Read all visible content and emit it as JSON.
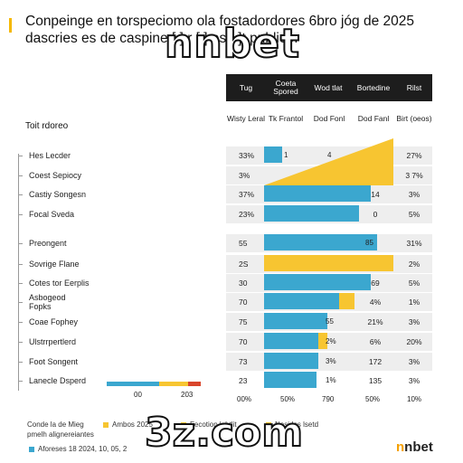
{
  "title": "Conpeinge en torspeciomo ola fostadordores 6bro jóg de 2025 dascries es de caspine [ ] r [ ] es [ ]t publico.",
  "watermark_top": "nnbet",
  "watermark_bottom": "3z.com",
  "brand": {
    "prefix": "n",
    "rest": "nbet"
  },
  "table_label": "Toit rdoreo",
  "header": [
    "Tug",
    "Coeta Spored",
    "Wod tlat",
    "Bortedine",
    "Rilst"
  ],
  "subheader": [
    "Wisty Leral",
    "Tk Frantol",
    "Dod Fonl",
    "Dod Fanl",
    "Birt (oeos)"
  ],
  "rows": [
    {
      "label": "Hes Lecder",
      "pct": "33%",
      "v3": "",
      "v4": "27%",
      "bar_text": "1",
      "bar_text2": "4"
    },
    {
      "label": "Coest Sepiocy",
      "pct": "3%",
      "v3": "",
      "v4": "3 7%",
      "bar_text": "",
      "bar_text2": ""
    },
    {
      "label": "Castiy Songesn",
      "pct": "37%",
      "v3": "14",
      "v4": "3%",
      "bar_text": "",
      "bar_text2": ""
    },
    {
      "label": "Focal Sveda",
      "pct": "23%",
      "v3": "0",
      "v4": "5%",
      "bar_text": "",
      "bar_text2": ""
    },
    {
      "label": "Preongent",
      "pct": "55",
      "v3": "",
      "v4": "31%",
      "bar_text": "85",
      "bar_text2": ""
    },
    {
      "label": "Sovrige Flane",
      "pct": "2S",
      "v3": "",
      "v4": "2%",
      "bar_text": "",
      "bar_text2": ""
    },
    {
      "label": "Cotes tor Eerplis",
      "pct": "30",
      "v3": "69",
      "v4": "5%",
      "bar_text": "",
      "bar_text2": ""
    },
    {
      "label": "Asbogeod Fopks",
      "pct": "70",
      "v3": "4%",
      "v4": "1%",
      "bar_text": "",
      "bar_text2": ""
    },
    {
      "label": "Coae Fophey",
      "pct": "75",
      "v3": "21%",
      "v4": "3%",
      "bar_text": "55",
      "bar_text2": ""
    },
    {
      "label": "Ulstrrpertlerd",
      "pct": "70",
      "v3": "6%",
      "v4": "20%",
      "bar_text": "2%",
      "bar_text2": ""
    },
    {
      "label": "Foot Songent",
      "pct": "73",
      "v3": "172",
      "v4": "3%",
      "bar_text": "3%",
      "bar_text2": ""
    },
    {
      "label": "Lanecle Dsperd",
      "pct": "23",
      "v3": "135",
      "v4": "3%",
      "bar_text": "1%",
      "bar_text2": ""
    }
  ],
  "axis_ticks": [
    "00%",
    "50%",
    "790",
    "50%",
    "10%"
  ],
  "mini_numbers": [
    "00",
    "203"
  ],
  "legend": {
    "line1_left": "Conde la de Mieg",
    "line1_items": [
      "Ambos 2025",
      "Fecotion lehtlit",
      "Nesides lsetd"
    ],
    "line2": "pmelh alignereiantes",
    "line3": "Aforeses 18 2024, 10, 05, 2"
  },
  "chart_data": {
    "type": "bar",
    "categories": [
      "Hes Lecder",
      "Coest Sepiocy",
      "Castiy Songesn",
      "Focal Sveda",
      "Preongent",
      "Sovrige Flane",
      "Cotes tor Eerplis",
      "Asbogeod Fopks",
      "Coae Fophey",
      "Ulstrrpertlerd",
      "Foot Songent",
      "Lanecle Dsperd"
    ],
    "series": [
      {
        "values": [
          8,
          0,
          47,
          42,
          50,
          0,
          47,
          33,
          28,
          24,
          24,
          23
        ],
        "color": "#3ba7cf"
      },
      {
        "values": [
          0,
          0,
          0,
          0,
          0,
          57,
          0,
          7,
          0,
          4,
          0,
          0
        ],
        "color": "#f7c531"
      }
    ],
    "colors": {
      "blue": "#3ba7cf",
      "yellow": "#f7c531",
      "header": "#1d1d1d",
      "red": "#d9452b"
    }
  }
}
